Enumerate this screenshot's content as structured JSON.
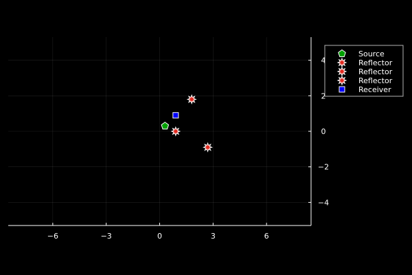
{
  "chart_data": {
    "type": "scatter",
    "title": "",
    "xlabel": "",
    "ylabel": "",
    "xlim": [
      -8.5,
      8.5
    ],
    "ylim": [
      -5.3,
      5.3
    ],
    "x_ticks": [
      -6,
      -3,
      0,
      3,
      6
    ],
    "x_tick_labels": [
      "−6",
      "−3",
      "0",
      "3",
      "6"
    ],
    "y_ticks": [
      4,
      2,
      0,
      -2,
      -4
    ],
    "y_tick_labels": [
      "4",
      "2",
      "0",
      "−2",
      "−4"
    ],
    "grid": true,
    "y_axis_side": "right",
    "legend_position": "top-right",
    "background": "#000000",
    "series": [
      {
        "name": "Source",
        "marker": "pentagon",
        "color": "#00a000",
        "points": [
          [
            0.3,
            0.3
          ]
        ]
      },
      {
        "name": "Reflector",
        "marker": "star8",
        "color": "#e32a1f",
        "points": [
          [
            1.8,
            1.8
          ]
        ]
      },
      {
        "name": "Reflector",
        "marker": "star8",
        "color": "#e32a1f",
        "points": [
          [
            0.9,
            0.0
          ]
        ]
      },
      {
        "name": "Reflector",
        "marker": "star8",
        "color": "#e32a1f",
        "points": [
          [
            2.7,
            -0.9
          ]
        ]
      },
      {
        "name": "Receiver",
        "marker": "square",
        "color": "#0000ff",
        "points": [
          [
            0.9,
            0.9
          ]
        ]
      }
    ]
  }
}
